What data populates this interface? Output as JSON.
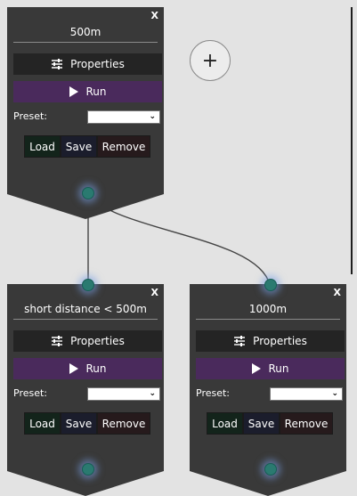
{
  "add_node": {
    "symbol": "+",
    "icon": "plus-icon"
  },
  "nodes": [
    {
      "close": "X",
      "title": "500m",
      "properties_label": "Properties",
      "run_label": "Run",
      "preset_label": "Preset:",
      "preset_value": "",
      "load_label": "Load",
      "save_label": "Save",
      "remove_label": "Remove"
    },
    {
      "close": "X",
      "title": "short distance < 500m",
      "properties_label": "Properties",
      "run_label": "Run",
      "preset_label": "Preset:",
      "preset_value": "",
      "load_label": "Load",
      "save_label": "Save",
      "remove_label": "Remove"
    },
    {
      "close": "X",
      "title": "1000m",
      "properties_label": "Properties",
      "run_label": "Run",
      "preset_label": "Preset:",
      "preset_value": "",
      "load_label": "Load",
      "save_label": "Save",
      "remove_label": "Remove"
    }
  ],
  "colors": {
    "node_bg": "#393939",
    "run_bg": "#4a2a5c",
    "port": "#2a7a70",
    "canvas": "#e3e3e3"
  }
}
